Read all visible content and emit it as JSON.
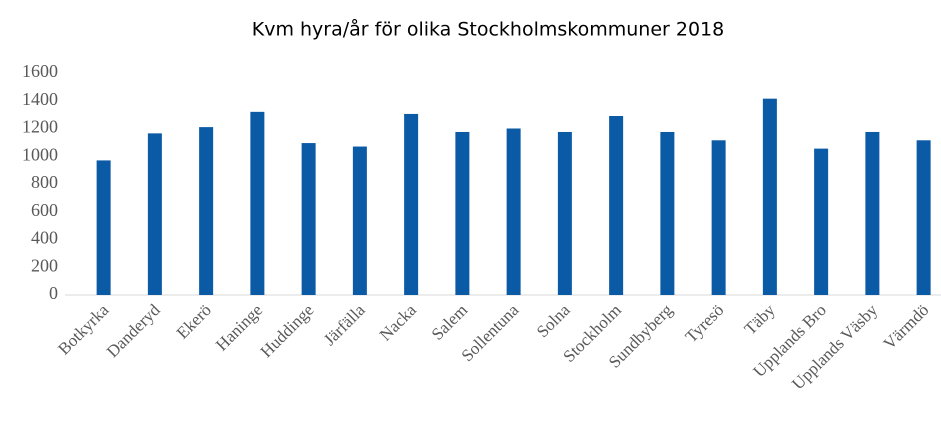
{
  "chart_data": {
    "type": "bar",
    "title": "Kvm hyra/år för olika Stockholmskommuner 2018",
    "categories": [
      "Botkyrka",
      "Danderyd",
      "Ekerö",
      "Haninge",
      "Huddinge",
      "Järfälla",
      "Nacka",
      "Salem",
      "Sollentuna",
      "Solna",
      "Stockholm",
      "Sundbyberg",
      "Tyresö",
      "Täby",
      "Upplands Bro",
      "Upplands Väsby",
      "Värmdö"
    ],
    "values": [
      970,
      1165,
      1210,
      1320,
      1095,
      1070,
      1305,
      1175,
      1200,
      1175,
      1290,
      1175,
      1115,
      1415,
      1055,
      1175,
      1115
    ],
    "color": "#0b5aa6",
    "ylim": [
      0,
      1600
    ],
    "yticks": [
      0,
      200,
      400,
      600,
      800,
      1000,
      1200,
      1400,
      1600
    ],
    "grid": false
  }
}
